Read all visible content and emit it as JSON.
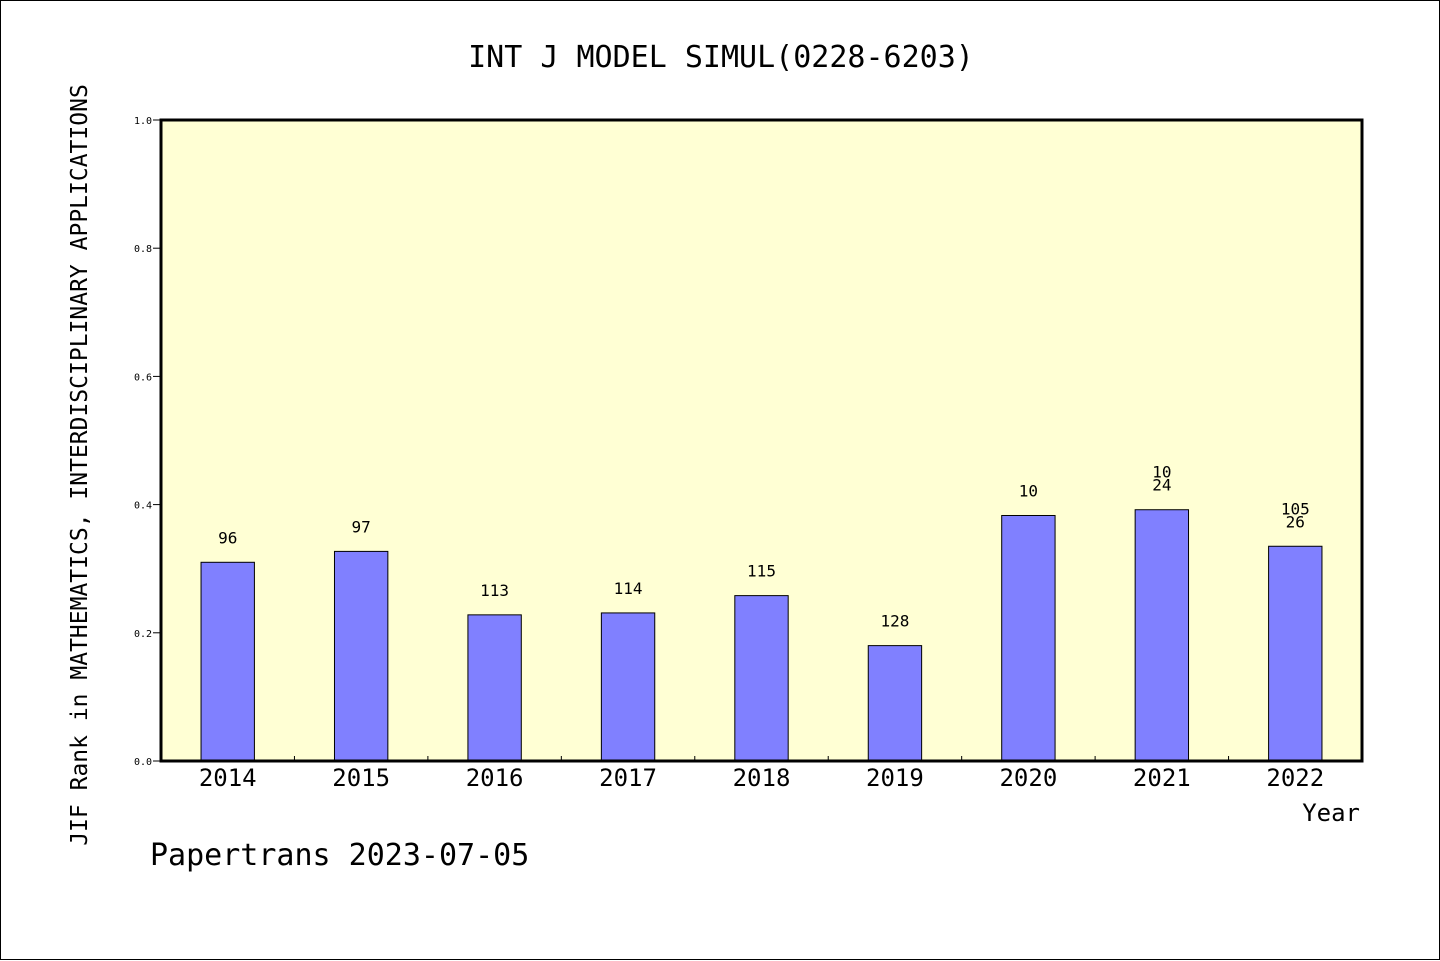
{
  "chart_data": {
    "type": "bar",
    "title": "INT J MODEL SIMUL(0228-6203)",
    "xlabel": "Year",
    "ylabel": "JIF Rank in MATHEMATICS, INTERDISCIPLINARY APPLICATIONS",
    "ylim": [
      0,
      1.0
    ],
    "yticks": [
      "0.0",
      "0.2",
      "0.4",
      "0.6",
      "0.8",
      "1.0"
    ],
    "categories": [
      "2014",
      "2015",
      "2016",
      "2017",
      "2018",
      "2019",
      "2020",
      "2021",
      "2022"
    ],
    "values": [
      0.31,
      0.327,
      0.228,
      0.231,
      0.258,
      0.18,
      0.383,
      0.392,
      0.335
    ],
    "bar_labels": [
      [
        "96"
      ],
      [
        "97"
      ],
      [
        "113"
      ],
      [
        "114"
      ],
      [
        "115"
      ],
      [
        "128"
      ],
      [
        "10"
      ],
      [
        "10",
        "24"
      ],
      [
        "105",
        "26"
      ]
    ],
    "grid": false,
    "plot_background": "#ffffd4",
    "bar_color": "#8080ff"
  },
  "footer": "Papertrans 2023-07-05"
}
